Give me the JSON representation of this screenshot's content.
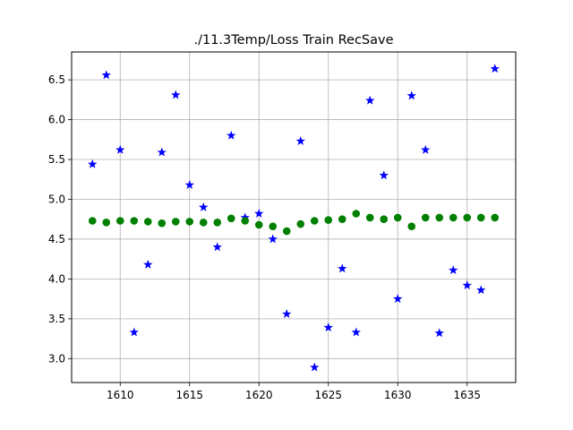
{
  "chart_data": {
    "type": "scatter",
    "title": "./11.3Temp/Loss Train RecSave",
    "xlabel": "",
    "ylabel": "",
    "xlim": [
      1606.5,
      1638.5
    ],
    "ylim": [
      2.7,
      6.85
    ],
    "grid": true,
    "x_ticks": [
      1610,
      1615,
      1620,
      1625,
      1630,
      1635
    ],
    "y_ticks": [
      3.0,
      3.5,
      4.0,
      4.5,
      5.0,
      5.5,
      6.0,
      6.5
    ],
    "x": [
      1608,
      1609,
      1610,
      1611,
      1612,
      1613,
      1614,
      1615,
      1616,
      1617,
      1618,
      1619,
      1620,
      1621,
      1622,
      1623,
      1624,
      1625,
      1626,
      1627,
      1628,
      1629,
      1630,
      1631,
      1632,
      1633,
      1634,
      1635,
      1636,
      1637
    ],
    "series": [
      {
        "marker": "star",
        "color": "#0000ff",
        "values": [
          5.44,
          6.56,
          5.62,
          3.33,
          4.18,
          5.59,
          6.31,
          5.18,
          4.9,
          4.4,
          5.8,
          4.77,
          4.82,
          4.5,
          3.56,
          5.73,
          2.89,
          3.39,
          4.13,
          3.33,
          6.24,
          5.3,
          3.75,
          6.3,
          5.62,
          3.32,
          4.11,
          3.92,
          3.86,
          6.64
        ]
      },
      {
        "marker": "circle",
        "color": "#008000",
        "values": [
          4.73,
          4.71,
          4.73,
          4.73,
          4.72,
          4.7,
          4.72,
          4.72,
          4.71,
          4.71,
          4.76,
          4.73,
          4.68,
          4.66,
          4.6,
          4.69,
          4.73,
          4.74,
          4.75,
          4.82,
          4.77,
          4.75,
          4.77,
          4.66,
          4.77,
          4.77,
          4.77,
          4.77,
          4.77,
          4.77
        ]
      }
    ]
  }
}
